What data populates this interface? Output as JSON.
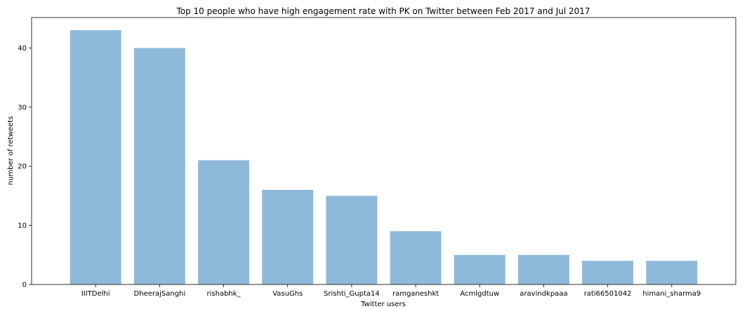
{
  "chart_data": {
    "type": "bar",
    "title": "Top 10 people who have high engagement rate with PK on Twitter between Feb 2017 and Jul 2017",
    "xlabel": "Twitter users",
    "ylabel": "number of retweets",
    "categories": [
      "IIITDelhi",
      "DheerajSanghi",
      "rishabhk_",
      "VasuGhs",
      "Srishti_Gupta14",
      "ramganeshkt",
      "Acmlgdtuw",
      "aravindkpaaa",
      "rati66501042",
      "himani_sharma9"
    ],
    "values": [
      43,
      40,
      21,
      16,
      15,
      9,
      5,
      5,
      4,
      4
    ],
    "ylim": [
      0,
      45.15
    ],
    "yticks": [
      0,
      10,
      20,
      30,
      40
    ],
    "grid": false,
    "bar_color": "#8fb9d9"
  }
}
